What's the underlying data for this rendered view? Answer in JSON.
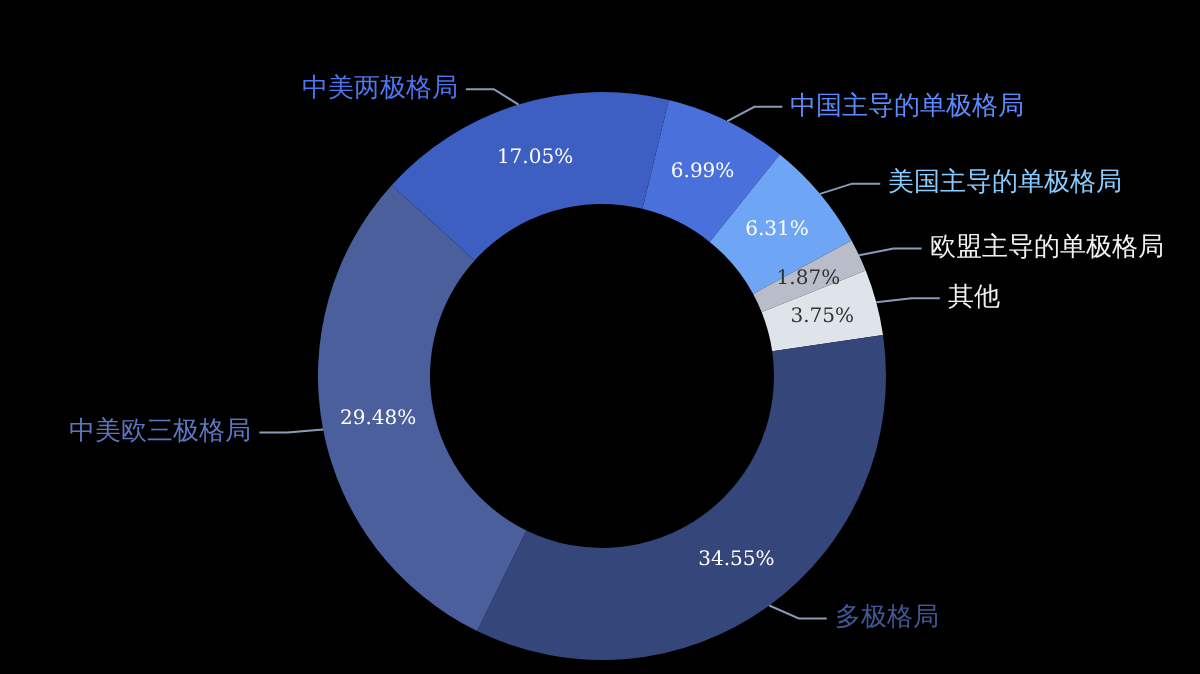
{
  "chart_data": {
    "type": "donut",
    "categories": [
      "中国主导的单极格局",
      "美国主导的单极格局",
      "欧盟主导的单极格局",
      "其他",
      "多极格局",
      "中美欧三极格局",
      "中美两极格局"
    ],
    "values": [
      6.99,
      6.31,
      1.87,
      3.75,
      34.55,
      29.48,
      17.05
    ],
    "colors": [
      "#4a70dc",
      "#6fa5f5",
      "#b9bdc9",
      "#dfe3ea",
      "#35467a",
      "#4a5f9c",
      "#3e5fc2"
    ],
    "value_labels": [
      "6.99%",
      "6.31%",
      "1.87%",
      "3.75%",
      "34.55%",
      "29.48%",
      "17.05%"
    ]
  }
}
